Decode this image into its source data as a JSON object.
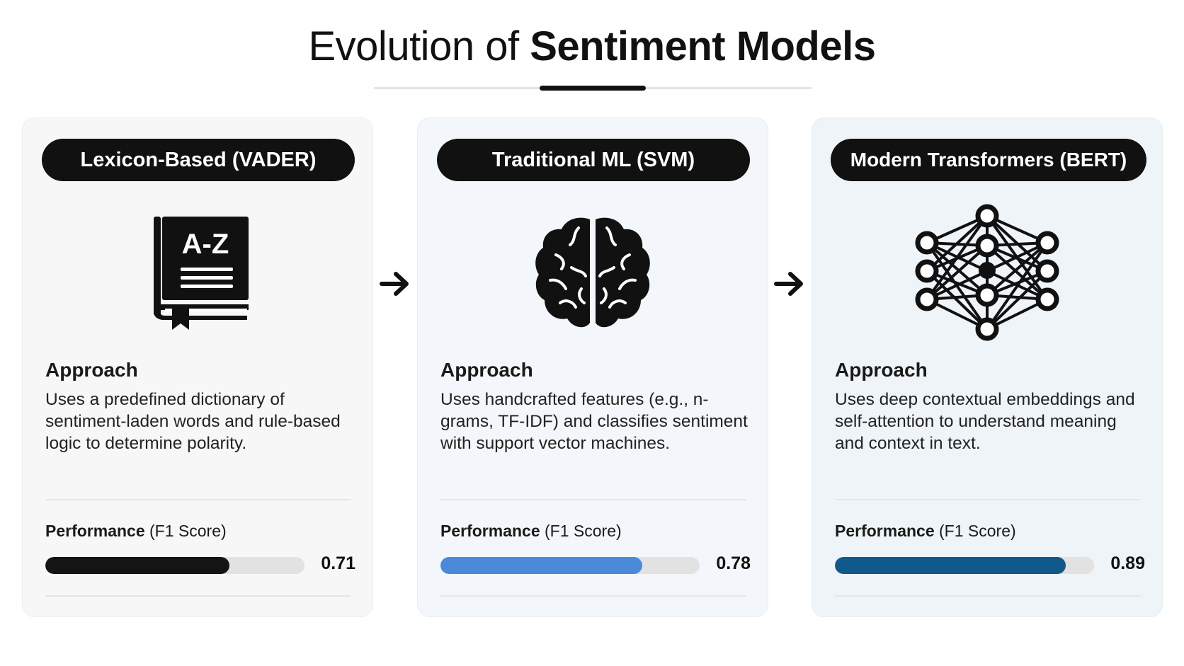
{
  "title": {
    "light": "Evolution of",
    "bold": "Sentiment Models"
  },
  "cards": [
    {
      "name": "Lexicon-Based (VADER)",
      "icon": "dictionary-book-icon",
      "icon_text": "A-Z",
      "approach_heading": "Approach",
      "approach_text": "Uses a predefined dictionary of sentiment-laden words and rule-based logic to determine polarity.",
      "performance_bold": "Performance",
      "performance_rest": " (F1 Score)",
      "score": 0.71,
      "score_label": "0.71",
      "bar_color": "#141414"
    },
    {
      "name": "Traditional ML (SVM)",
      "icon": "brain-icon",
      "approach_heading": "Approach",
      "approach_text": "Uses handcrafted features (e.g., n-grams, TF-IDF) and classifies sentiment with support vector machines.",
      "performance_bold": "Performance",
      "performance_rest": " (F1 Score)",
      "score": 0.78,
      "score_label": "0.78",
      "bar_color": "#4a8ad8"
    },
    {
      "name": "Modern Transformers (BERT)",
      "icon": "neural-network-icon",
      "approach_heading": "Approach",
      "approach_text": "Uses deep contextual embeddings and self-attention to understand meaning and context in text.",
      "performance_bold": "Performance",
      "performance_rest": " (F1 Score)",
      "score": 0.89,
      "score_label": "0.89",
      "bar_color": "#0f5a8a"
    }
  ]
}
